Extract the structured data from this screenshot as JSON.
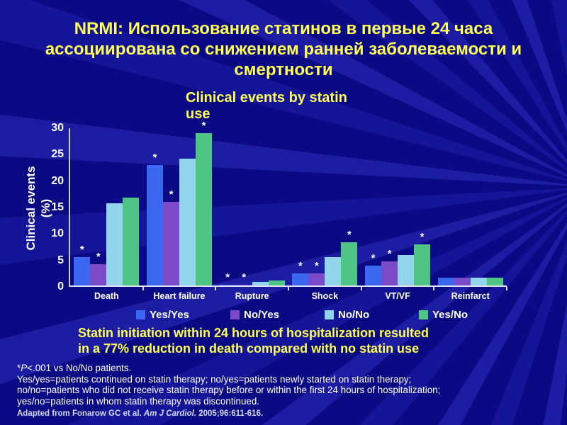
{
  "slide": {
    "title": "NRMI: Использование статинов в первые 24 часа\nассоциирована со снижением ранней заболеваемости и\nсмертности",
    "statement": "Statin initiation within 24 hours of hospitalization resulted\nin a 77% reduction in death compared with no statin use",
    "footnote": {
      "line1_star": "*",
      "line1_p": "P",
      "line1_rest": "<.001 vs No/No patients.",
      "line2": "Yes/yes=patients continued on statin therapy; no/yes=patients newly started on statin therapy;",
      "line3": "no/no=patients who did not receive statin therapy before or within the first 24 hours of hospitalization;",
      "line4": "yes/no=patients in whom statin therapy was discontinued."
    },
    "citation": {
      "prefix": "Adapted from Fonarow GC et al. ",
      "journal_italic": "Am J Cardiol.",
      "suffix": " 2005;96:611-616."
    },
    "colors": {
      "background": "#0a0a84",
      "background_ray": "#1d1da3",
      "title_yellow": "#ffff55",
      "text_white": "#ffffff",
      "axis": "#c8cee8"
    }
  },
  "chart_data": {
    "type": "bar",
    "title": "Clinical events by statin\nuse",
    "ylabel": "Clinical events\n(%)",
    "xlabel": "",
    "ylim": [
      0,
      30
    ],
    "yticks": [
      0,
      5,
      10,
      15,
      20,
      25,
      30
    ],
    "grid": false,
    "legend_position": "bottom",
    "significance_marker": "*",
    "significance_note": "*P<.001 vs No/No patients",
    "categories": [
      "Death",
      "Heart failure",
      "Rupture",
      "Shock",
      "VT/VF",
      "Reinfarct"
    ],
    "series": [
      {
        "name": "Yes/Yes",
        "color": "#3b66f0",
        "values": [
          5.4,
          22.8,
          0.2,
          2.3,
          3.7,
          1.5
        ],
        "significant": [
          true,
          true,
          true,
          true,
          true,
          false
        ]
      },
      {
        "name": "No/Yes",
        "color": "#7a4ac9",
        "values": [
          4.0,
          15.8,
          0.2,
          2.3,
          4.5,
          1.5
        ],
        "significant": [
          true,
          true,
          true,
          true,
          true,
          false
        ]
      },
      {
        "name": "No/No",
        "color": "#92d4ea",
        "values": [
          15.5,
          24.0,
          0.7,
          5.4,
          5.7,
          1.5
        ],
        "significant": [
          false,
          false,
          false,
          false,
          false,
          false
        ]
      },
      {
        "name": "Yes/No",
        "color": "#4ec584",
        "values": [
          16.6,
          28.8,
          1.0,
          8.2,
          7.8,
          1.5
        ],
        "significant": [
          false,
          true,
          false,
          true,
          true,
          false
        ]
      }
    ]
  }
}
